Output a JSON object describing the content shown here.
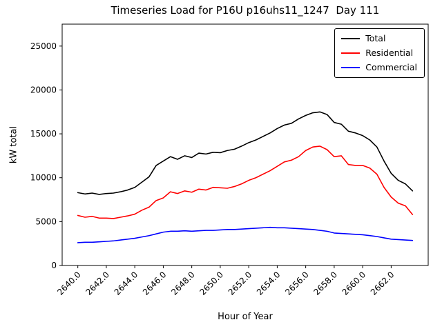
{
  "title": "Timeseries Load for P16U p16uhs11_1247  Day 111",
  "xlabel": "Hour of Year",
  "ylabel": "kW total",
  "legend": {
    "position": "upper right",
    "entries": [
      {
        "label": "Total",
        "color": "#000000"
      },
      {
        "label": "Residential",
        "color": "#ff0000"
      },
      {
        "label": "Commercial",
        "color": "#0000ff"
      }
    ]
  },
  "chart_data": {
    "type": "line",
    "title": "Timeseries Load for P16U p16uhs11_1247  Day 111",
    "xlabel": "Hour of Year",
    "ylabel": "kW total",
    "grid": false,
    "legend_position": "upper right",
    "xlim": [
      2638.9,
      2664.6
    ],
    "ylim": [
      0,
      27500
    ],
    "xtick_values": [
      2640,
      2642,
      2644,
      2646,
      2648,
      2650,
      2652,
      2654,
      2656,
      2658,
      2660,
      2662
    ],
    "xtick_labels": [
      "2640.0",
      "2642.0",
      "2644.0",
      "2646.0",
      "2648.0",
      "2650.0",
      "2652.0",
      "2654.0",
      "2656.0",
      "2658.0",
      "2660.0",
      "2662.0"
    ],
    "ytick_values": [
      0,
      5000,
      10000,
      15000,
      20000,
      25000
    ],
    "ytick_labels": [
      "0",
      "5000",
      "10000",
      "15000",
      "20000",
      "25000"
    ],
    "x": [
      2640.0,
      2640.5,
      2641.0,
      2641.5,
      2642.0,
      2642.5,
      2643.0,
      2643.5,
      2644.0,
      2644.5,
      2645.0,
      2645.5,
      2646.0,
      2646.5,
      2647.0,
      2647.5,
      2648.0,
      2648.5,
      2649.0,
      2649.5,
      2650.0,
      2650.5,
      2651.0,
      2651.5,
      2652.0,
      2652.5,
      2653.0,
      2653.5,
      2654.0,
      2654.5,
      2655.0,
      2655.5,
      2656.0,
      2656.5,
      2657.0,
      2657.5,
      2658.0,
      2658.5,
      2659.0,
      2659.5,
      2660.0,
      2660.5,
      2661.0,
      2661.5,
      2662.0,
      2662.5,
      2663.0,
      2663.5
    ],
    "series": [
      {
        "name": "Total",
        "color": "#000000",
        "values": [
          8300,
          8150,
          8250,
          8100,
          8200,
          8250,
          8400,
          8600,
          8900,
          9500,
          10100,
          11400,
          11900,
          12400,
          12100,
          12500,
          12300,
          12800,
          12700,
          12900,
          12850,
          13100,
          13250,
          13600,
          14000,
          14300,
          14700,
          15100,
          15600,
          16000,
          16200,
          16700,
          17100,
          17400,
          17500,
          17200,
          16300,
          16100,
          15300,
          15100,
          14800,
          14300,
          13500,
          11900,
          10500,
          9700,
          9300,
          8500
        ]
      },
      {
        "name": "Residential",
        "color": "#ff0000",
        "values": [
          5700,
          5500,
          5600,
          5400,
          5400,
          5350,
          5500,
          5650,
          5850,
          6300,
          6650,
          7400,
          7700,
          8400,
          8200,
          8500,
          8350,
          8700,
          8600,
          8900,
          8850,
          8800,
          9000,
          9300,
          9700,
          10000,
          10400,
          10800,
          11300,
          11800,
          12000,
          12400,
          13100,
          13500,
          13600,
          13200,
          12400,
          12500,
          11500,
          11400,
          11400,
          11100,
          10400,
          8900,
          7800,
          7100,
          6800,
          5800
        ]
      },
      {
        "name": "Commercial",
        "color": "#0000ff",
        "values": [
          2600,
          2650,
          2650,
          2700,
          2750,
          2800,
          2900,
          3000,
          3100,
          3250,
          3400,
          3600,
          3800,
          3900,
          3900,
          3950,
          3900,
          3950,
          4000,
          4000,
          4050,
          4100,
          4100,
          4150,
          4200,
          4250,
          4300,
          4350,
          4300,
          4300,
          4250,
          4200,
          4150,
          4100,
          4000,
          3900,
          3700,
          3650,
          3600,
          3550,
          3500,
          3400,
          3300,
          3150,
          3000,
          2950,
          2900,
          2850
        ]
      }
    ]
  }
}
